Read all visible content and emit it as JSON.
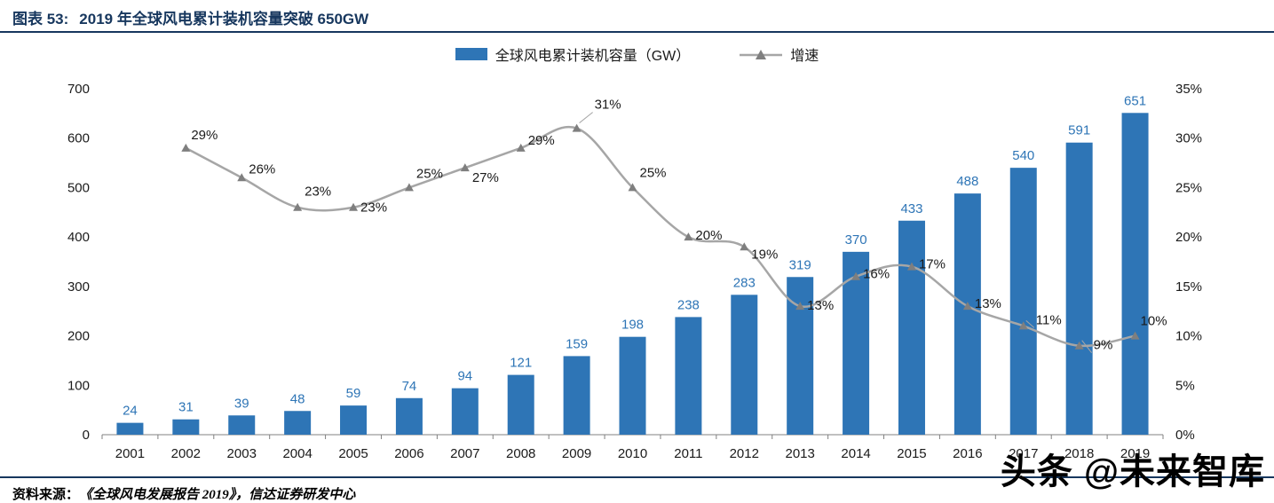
{
  "colors": {
    "title": "#17375E",
    "rule": "#17375E",
    "axis_text": "#1a1a1a",
    "background": "#ffffff"
  },
  "header": {
    "title_prefix": "图表 53:",
    "title": "2019 年全球风电累计装机容量突破 650GW"
  },
  "footer": {
    "source_label": "资料来源：",
    "source_text": "《全球风电发展报告 2019》，信达证券研发中心",
    "watermark": "头条 @未来智库"
  },
  "chart_data": {
    "type": "bar",
    "subtype": "bar-line-combo",
    "title": "2019 年全球风电累计装机容量突破 650GW",
    "categories": [
      "2001",
      "2002",
      "2003",
      "2004",
      "2005",
      "2006",
      "2007",
      "2008",
      "2009",
      "2010",
      "2011",
      "2012",
      "2013",
      "2014",
      "2015",
      "2016",
      "2017",
      "2018",
      "2019"
    ],
    "series": [
      {
        "name": "全球风电累计装机容量（GW）",
        "type": "bar",
        "axis": "left",
        "color": "#2E75B6",
        "values": [
          24,
          31,
          39,
          48,
          59,
          74,
          94,
          121,
          159,
          198,
          238,
          283,
          319,
          370,
          433,
          488,
          540,
          591,
          651
        ]
      },
      {
        "name": "增速",
        "type": "line",
        "axis": "right",
        "color": "#A6A6A6",
        "marker_color": "#7F7F7F",
        "values": [
          null,
          0.29,
          0.26,
          0.23,
          0.23,
          0.25,
          0.27,
          0.29,
          0.31,
          0.25,
          0.2,
          0.19,
          0.13,
          0.16,
          0.17,
          0.13,
          0.11,
          0.09,
          0.1
        ]
      }
    ],
    "left_axis": {
      "min": 0,
      "max": 700,
      "step": 100
    },
    "right_axis": {
      "min": 0,
      "max": 0.35,
      "step": 0.05,
      "format": "percent"
    },
    "grid": false,
    "legend_position": "top-center",
    "line_label_offsets": [
      null,
      [
        6,
        -10,
        false
      ],
      [
        8,
        -5,
        false
      ],
      [
        8,
        -13,
        false
      ],
      [
        8,
        5,
        false
      ],
      [
        8,
        -11,
        false
      ],
      [
        8,
        16,
        false
      ],
      [
        8,
        -4,
        false
      ],
      [
        20,
        -22,
        true
      ],
      [
        8,
        -12,
        false
      ],
      [
        8,
        3,
        false
      ],
      [
        8,
        13,
        false
      ],
      [
        8,
        4,
        false
      ],
      [
        8,
        2,
        false
      ],
      [
        8,
        2,
        false
      ],
      [
        8,
        2,
        false
      ],
      [
        14,
        -2,
        true
      ],
      [
        16,
        4,
        true
      ],
      [
        6,
        -12,
        false
      ]
    ]
  }
}
